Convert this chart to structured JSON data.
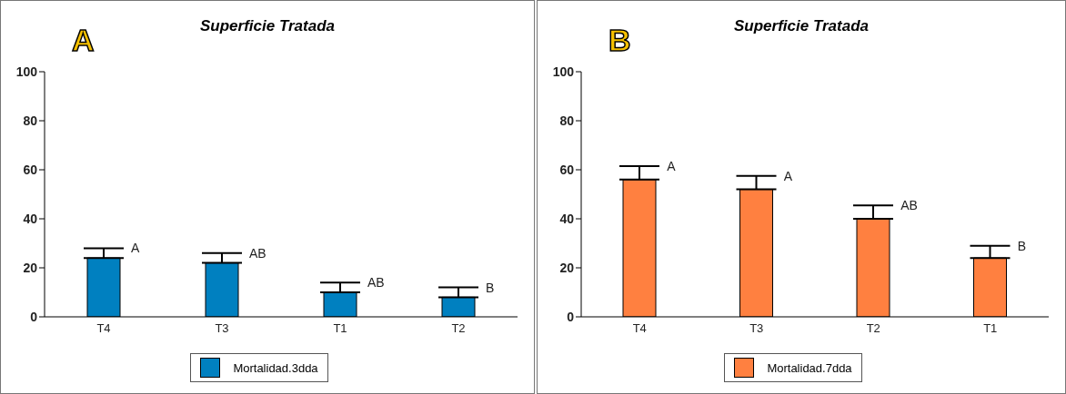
{
  "chart_data": [
    {
      "type": "bar",
      "title": "Superficie Tratada",
      "categories": [
        "T4",
        "T3",
        "T1",
        "T2"
      ],
      "series": [
        {
          "name": "Mortalidad.3dda",
          "color": "#0080c0",
          "values": [
            24,
            22,
            10,
            8
          ],
          "errors": [
            [
              24,
              28
            ],
            [
              22,
              26
            ],
            [
              10,
              14
            ],
            [
              8,
              12
            ]
          ]
        }
      ],
      "ylim": [
        0,
        100
      ],
      "yticks": [
        0,
        20,
        40,
        60,
        80,
        100
      ],
      "legend": "bottom",
      "annotations": [
        "A",
        {
          "text": "A",
          "x": "T4",
          "y": 28
        },
        {
          "text": "AB",
          "x": "T3",
          "y": 26
        },
        {
          "text": "AB",
          "x": "T1",
          "y": 14
        },
        {
          "text": "B",
          "x": "T2",
          "y": 12
        }
      ]
    },
    {
      "type": "bar",
      "title": "Superficie Tratada",
      "categories": [
        "T4",
        "T3",
        "T2",
        "T1"
      ],
      "series": [
        {
          "name": "Mortalidad.7dda",
          "color": "#ff8040",
          "values": [
            56,
            52,
            40,
            24
          ],
          "errors": [
            [
              56,
              61.5
            ],
            [
              52,
              57.5
            ],
            [
              40,
              45.5
            ],
            [
              24,
              29
            ]
          ]
        }
      ],
      "ylim": [
        0,
        100
      ],
      "yticks": [
        0,
        20,
        40,
        60,
        80,
        100
      ],
      "legend": "bottom",
      "annotations": [
        "B",
        {
          "text": "A",
          "x": "T4",
          "y": 61.5
        },
        {
          "text": "A",
          "x": "T3",
          "y": 57.5
        },
        {
          "text": "AB",
          "x": "T2",
          "y": 45.5
        },
        {
          "text": "B",
          "x": "T1",
          "y": 29
        }
      ]
    }
  ]
}
